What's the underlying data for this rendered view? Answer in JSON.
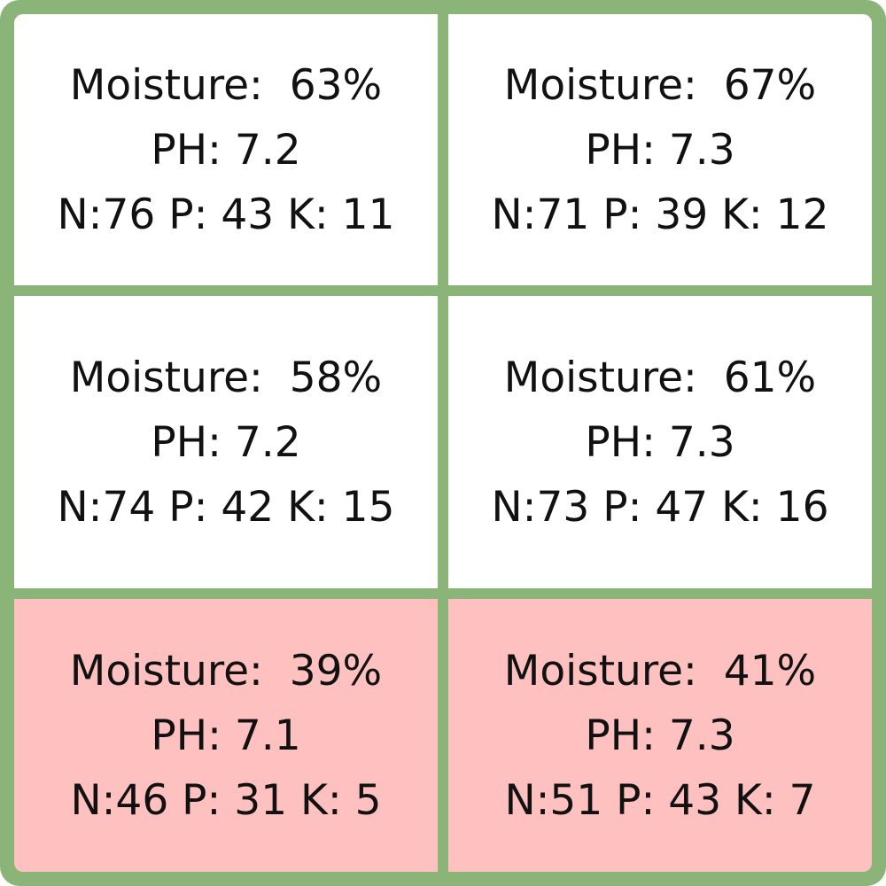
{
  "colors": {
    "border": "#8ab478",
    "normal_cell": "#ffffff",
    "alert_cell": "#ffc0c0",
    "text": "#111111"
  },
  "cells": [
    {
      "status": "normal",
      "moisture": "Moisture:  63%",
      "ph": "PH: 7.2",
      "npk": "N:76 P: 43 K: 11"
    },
    {
      "status": "normal",
      "moisture": "Moisture:  67%",
      "ph": "PH: 7.3",
      "npk": "N:71 P: 39 K: 12"
    },
    {
      "status": "normal",
      "moisture": "Moisture:  58%",
      "ph": "PH: 7.2",
      "npk": "N:74 P: 42 K: 15"
    },
    {
      "status": "normal",
      "moisture": "Moisture:  61%",
      "ph": "PH: 7.3",
      "npk": "N:73 P: 47 K: 16"
    },
    {
      "status": "alert",
      "moisture": "Moisture:  39%",
      "ph": "PH: 7.1",
      "npk": "N:46 P: 31 K: 5"
    },
    {
      "status": "alert",
      "moisture": "Moisture:  41%",
      "ph": "PH: 7.3",
      "npk": "N:51 P: 43 K: 7"
    }
  ]
}
